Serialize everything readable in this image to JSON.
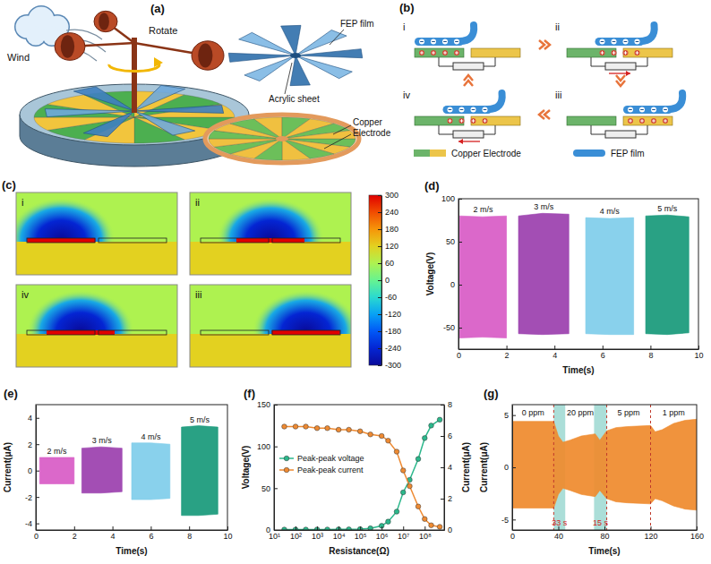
{
  "figure": {
    "a": {
      "panel": "(a)",
      "wind": "Wind",
      "rotate": "Rotate",
      "fep_film": "FEP film",
      "acrylic_sheet": "Acrylic sheet",
      "copper_electrode": "Copper Electrode"
    },
    "b": {
      "panel": "(b)",
      "stages": [
        "i",
        "ii",
        "iii",
        "iv"
      ],
      "legend": {
        "electrode": "Copper Electrode",
        "film": "FEP film"
      }
    },
    "c": {
      "panel": "(c)",
      "stages": [
        "i",
        "ii",
        "iv",
        "iii"
      ],
      "colorbar": {
        "range": [
          -300,
          300
        ],
        "ticks": [
          300,
          240,
          180,
          120,
          60,
          0,
          -60,
          -120,
          -180,
          -240,
          -300
        ]
      }
    }
  },
  "chart_data": [
    {
      "panel": "(d)",
      "type": "area",
      "x_label": "Time(s)",
      "y_label": "Voltage(V)",
      "xlim": [
        0,
        10
      ],
      "xticks": [
        0,
        2,
        4,
        6,
        8,
        10
      ],
      "ylim": [
        -75,
        100
      ],
      "yticks": [
        -50,
        0,
        50,
        100
      ],
      "series": [
        {
          "name": "2 m/s",
          "color": "#d85bc6",
          "x": [
            0.05,
            1.0,
            2.0
          ],
          "upper": [
            80,
            79,
            80
          ],
          "lower": [
            -62,
            -61,
            -62
          ]
        },
        {
          "name": "3 m/s",
          "color": "#9b3fae",
          "x": [
            2.5,
            3.5,
            4.6
          ],
          "upper": [
            80,
            83,
            82
          ],
          "lower": [
            -57,
            -58,
            -57
          ]
        },
        {
          "name": "4 m/s",
          "color": "#7fcdea",
          "x": [
            5.3,
            6.3,
            7.3
          ],
          "upper": [
            78,
            77,
            78
          ],
          "lower": [
            -57,
            -58,
            -58
          ]
        },
        {
          "name": "5 m/s",
          "color": "#17997a",
          "x": [
            7.8,
            8.7,
            9.6
          ],
          "upper": [
            80,
            81,
            79
          ],
          "lower": [
            -57,
            -58,
            -56
          ]
        }
      ]
    },
    {
      "panel": "(e)",
      "type": "area",
      "x_label": "Time(s)",
      "y_label": "Current(μA)",
      "xlim": [
        0,
        10
      ],
      "xticks": [
        0,
        2,
        4,
        6,
        8,
        10
      ],
      "ylim": [
        -4.5,
        5
      ],
      "yticks": [
        -4,
        -2,
        0,
        2,
        4
      ],
      "series": [
        {
          "name": "2 m/s",
          "color": "#d85bc6",
          "x": [
            0.2,
            1.1,
            2.0
          ],
          "upper": [
            1.0,
            1.0,
            1.0
          ],
          "lower": [
            -1.0,
            -1.0,
            -1.0
          ]
        },
        {
          "name": "3 m/s",
          "color": "#9b3fae",
          "x": [
            2.4,
            3.4,
            4.5
          ],
          "upper": [
            1.7,
            1.8,
            1.7
          ],
          "lower": [
            -1.7,
            -1.7,
            -1.6
          ]
        },
        {
          "name": "4 m/s",
          "color": "#7fcdea",
          "x": [
            5.0,
            6.0,
            7.0
          ],
          "upper": [
            2.1,
            2.1,
            2.0
          ],
          "lower": [
            -2.2,
            -2.2,
            -2.1
          ]
        },
        {
          "name": "5 m/s",
          "color": "#17997a",
          "x": [
            7.6,
            8.5,
            9.5
          ],
          "upper": [
            3.3,
            3.4,
            3.3
          ],
          "lower": [
            -3.4,
            -3.4,
            -3.3
          ]
        }
      ]
    },
    {
      "panel": "(f)",
      "type": "line",
      "x_label": "Resistance(Ω)",
      "y_label": "Voltage(V)",
      "y2_label": "Current(μA)",
      "log": "x",
      "legend": "center left",
      "xlim": [
        10,
        800000000
      ],
      "xticks": [
        {
          "value": 10,
          "label": "10¹"
        },
        {
          "value": 100,
          "label": "10²"
        },
        {
          "value": 1000,
          "label": "10³"
        },
        {
          "value": 10000,
          "label": "10⁴"
        },
        {
          "value": 100000,
          "label": "10⁵"
        },
        {
          "value": 1000000,
          "label": "10⁶"
        },
        {
          "value": 10000000,
          "label": "10⁷"
        },
        {
          "value": 100000000,
          "label": "10⁸"
        }
      ],
      "ylim": [
        0,
        150
      ],
      "yticks": [
        0,
        50,
        100,
        150
      ],
      "y2lim": [
        0,
        8
      ],
      "y2ticks": [
        0,
        2,
        4,
        6,
        8
      ],
      "x": [
        30,
        100,
        300,
        1000,
        3000,
        10000,
        30000,
        100000,
        300000,
        1000000,
        2000000,
        5000000,
        10000000,
        20000000,
        50000000,
        100000000,
        200000000,
        500000000
      ],
      "series": [
        {
          "name": "Peak-peak voltage",
          "color": "#2cb88c",
          "marker": "circle",
          "values": [
            0.5,
            0.5,
            0.5,
            0.6,
            0.6,
            0.7,
            0.8,
            1,
            2,
            5,
            10,
            22,
            45,
            60,
            85,
            110,
            125,
            132
          ]
        },
        {
          "name": "Peak-peak current",
          "color": "#ee8a32",
          "marker": "circle",
          "axis": "y2",
          "values": [
            6.6,
            6.6,
            6.6,
            6.5,
            6.5,
            6.4,
            6.4,
            6.3,
            6.1,
            6.0,
            5.7,
            5.0,
            3.8,
            2.8,
            1.5,
            0.7,
            0.3,
            0.2
          ]
        }
      ]
    },
    {
      "panel": "(g)",
      "type": "area",
      "x_label": "Time(s)",
      "y_label": "Current(μA)",
      "xlim": [
        0,
        160
      ],
      "xticks": [
        0,
        40,
        80,
        120,
        160
      ],
      "ylim": [
        -6,
        6
      ],
      "yticks": [
        -5,
        0,
        5
      ],
      "series": [
        {
          "color": "#ef8a2c",
          "x": [
            0,
            36,
            40,
            44,
            50,
            60,
            72,
            76,
            82,
            90,
            100,
            120,
            124,
            130,
            140,
            150,
            160
          ],
          "upper": [
            4.4,
            4.4,
            3.0,
            2.4,
            2.6,
            3.0,
            3.2,
            2.6,
            3.5,
            3.8,
            3.9,
            4.0,
            3.4,
            3.6,
            4.2,
            4.5,
            4.6
          ],
          "lower": [
            -3.9,
            -3.9,
            -2.6,
            -2.0,
            -2.2,
            -2.6,
            -2.8,
            -2.2,
            -3.0,
            -3.3,
            -3.4,
            -3.5,
            -3.0,
            -3.2,
            -3.7,
            -4.0,
            -4.1
          ]
        }
      ],
      "stages": [
        {
          "label": "0 ppm",
          "start": 0
        },
        {
          "label": "20 ppm",
          "start": 36
        },
        {
          "label": "5 ppm",
          "start": 82
        },
        {
          "label": "1 ppm",
          "start": 120
        }
      ],
      "response_times": [
        {
          "label": "33 s",
          "x": [
            36,
            46
          ]
        },
        {
          "label": "15 s",
          "x": [
            71,
            82
          ]
        }
      ]
    }
  ]
}
